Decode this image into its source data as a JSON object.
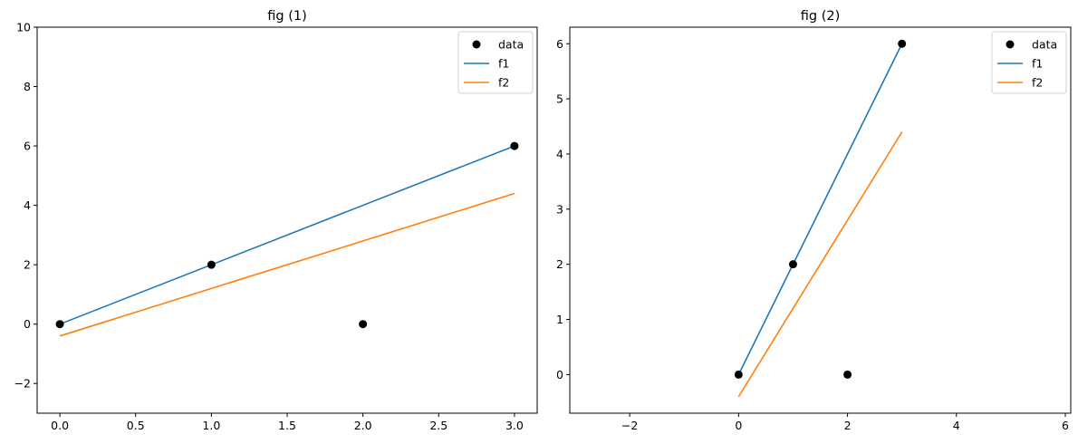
{
  "chart_data": [
    {
      "type": "line",
      "title": "fig (1)",
      "xlabel": "",
      "ylabel": "",
      "xlim": [
        -0.15,
        3.15
      ],
      "ylim": [
        -3,
        10
      ],
      "xticks": [
        0.0,
        0.5,
        1.0,
        1.5,
        2.0,
        2.5,
        3.0
      ],
      "xtick_labels": [
        "0.0",
        "0.5",
        "1.0",
        "1.5",
        "2.0",
        "2.5",
        "3.0"
      ],
      "yticks": [
        -2,
        0,
        2,
        4,
        6,
        8,
        10
      ],
      "ytick_labels": [
        "−2",
        "0",
        "2",
        "4",
        "6",
        "8",
        "10"
      ],
      "grid": false,
      "legend_position": "top-right",
      "scatter": {
        "name": "data",
        "color": "#000000",
        "x": [
          0,
          1,
          2,
          3
        ],
        "y": [
          0,
          2,
          0,
          6
        ]
      },
      "series": [
        {
          "name": "f1",
          "color": "#1f77b4",
          "x": [
            0,
            3
          ],
          "y": [
            0,
            6
          ]
        },
        {
          "name": "f2",
          "color": "#ff7f0e",
          "x": [
            0,
            3
          ],
          "y": [
            -0.4,
            4.4
          ]
        }
      ]
    },
    {
      "type": "line",
      "title": "fig (2)",
      "xlabel": "",
      "ylabel": "",
      "xlim": [
        -3.1,
        6.1
      ],
      "ylim": [
        -0.7,
        6.3
      ],
      "xticks": [
        -2,
        0,
        2,
        4,
        6
      ],
      "xtick_labels": [
        "−2",
        "0",
        "2",
        "4",
        "6"
      ],
      "yticks": [
        0,
        1,
        2,
        3,
        4,
        5,
        6
      ],
      "ytick_labels": [
        "0",
        "1",
        "2",
        "3",
        "4",
        "5",
        "6"
      ],
      "grid": false,
      "legend_position": "top-right",
      "scatter": {
        "name": "data",
        "color": "#000000",
        "x": [
          0,
          1,
          2,
          3
        ],
        "y": [
          0,
          2,
          0,
          6
        ]
      },
      "series": [
        {
          "name": "f1",
          "color": "#1f77b4",
          "x": [
            0,
            3
          ],
          "y": [
            0,
            6
          ]
        },
        {
          "name": "f2",
          "color": "#ff7f0e",
          "x": [
            0,
            3
          ],
          "y": [
            -0.4,
            4.4
          ]
        }
      ]
    }
  ]
}
